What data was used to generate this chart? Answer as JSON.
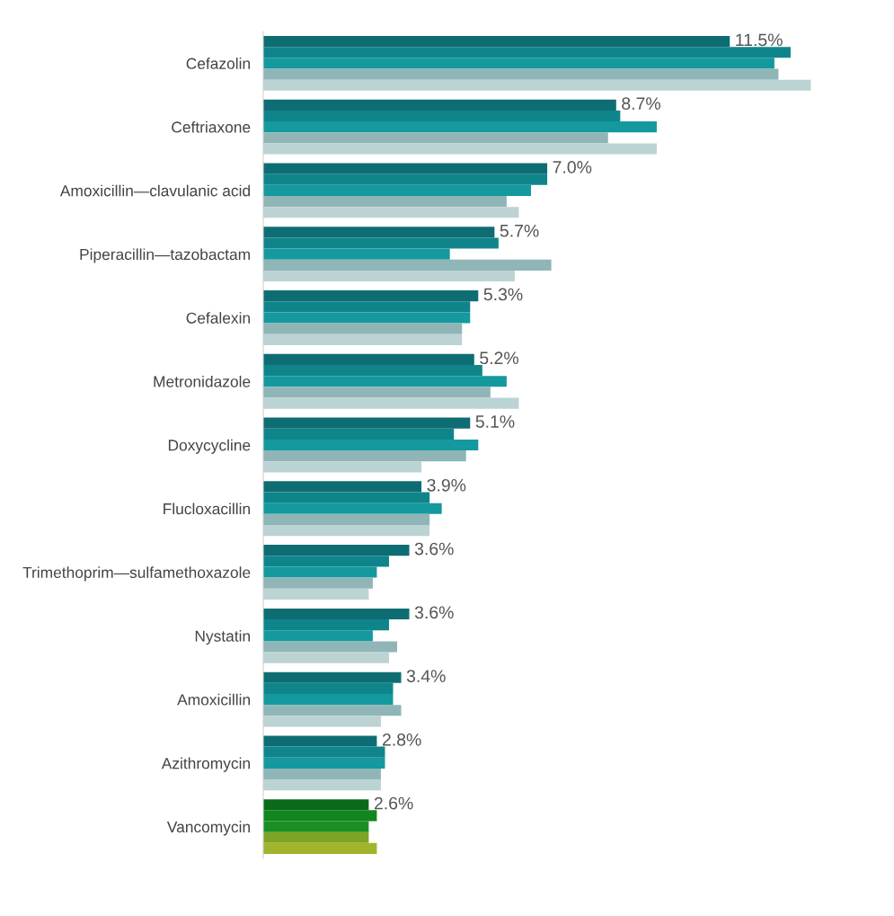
{
  "chart_data": {
    "type": "bar",
    "orientation": "horizontal",
    "categories": [
      "Cefazolin",
      "Ceftriaxone",
      "Amoxicillin—clavulanic acid",
      "Piperacillin—tazobactam",
      "Cefalexin",
      "Metronidazole",
      "Doxycycline",
      "Flucloxacillin",
      "Trimethoprim—sulfamethoxazole",
      "Nystatin",
      "Amoxicillin",
      "Azithromycin",
      "Vancomycin"
    ],
    "series": [
      {
        "color": "#0e6d73",
        "colors": [
          null,
          null,
          null,
          null,
          null,
          null,
          null,
          null,
          null,
          null,
          null,
          null,
          "#0a6a1a"
        ],
        "values": [
          11.5,
          8.7,
          7.0,
          5.7,
          5.3,
          5.2,
          5.1,
          3.9,
          3.6,
          3.6,
          3.4,
          2.8,
          2.6
        ],
        "value_labels": [
          "11.5%",
          "8.7%",
          "7.0%",
          "5.7%",
          "5.3%",
          "5.2%",
          "5.1%",
          "3.9%",
          "3.6%",
          "3.6%",
          "3.4%",
          "2.8%",
          "2.6%"
        ]
      },
      {
        "color": "#0f858b",
        "colors": [
          null,
          null,
          null,
          null,
          null,
          null,
          null,
          null,
          null,
          null,
          null,
          null,
          "#11861f"
        ],
        "values": [
          13.0,
          8.8,
          7.0,
          5.8,
          5.1,
          5.4,
          4.7,
          4.1,
          3.1,
          3.1,
          3.2,
          3.0,
          2.8
        ]
      },
      {
        "color": "#14999e",
        "colors": [
          null,
          null,
          null,
          null,
          null,
          null,
          null,
          null,
          null,
          null,
          null,
          null,
          "#1a8f22"
        ],
        "values": [
          12.6,
          9.7,
          6.6,
          4.6,
          5.1,
          6.0,
          5.3,
          4.4,
          2.8,
          2.7,
          3.2,
          3.0,
          2.6
        ]
      },
      {
        "color": "#8fb5b7",
        "colors": [
          null,
          null,
          null,
          null,
          null,
          null,
          null,
          null,
          null,
          null,
          null,
          null,
          "#7fa324"
        ],
        "values": [
          12.7,
          8.5,
          6.0,
          7.1,
          4.9,
          5.6,
          5.0,
          4.1,
          2.7,
          3.3,
          3.4,
          2.9,
          2.6
        ]
      },
      {
        "color": "#bcd3d4",
        "colors": [
          null,
          null,
          null,
          null,
          null,
          null,
          null,
          null,
          null,
          null,
          null,
          null,
          "#a2b42c"
        ],
        "values": [
          13.5,
          9.7,
          6.3,
          6.2,
          4.9,
          6.3,
          3.9,
          4.1,
          2.6,
          3.1,
          2.9,
          2.9,
          2.8
        ]
      }
    ],
    "tick_labels": "y"
  }
}
